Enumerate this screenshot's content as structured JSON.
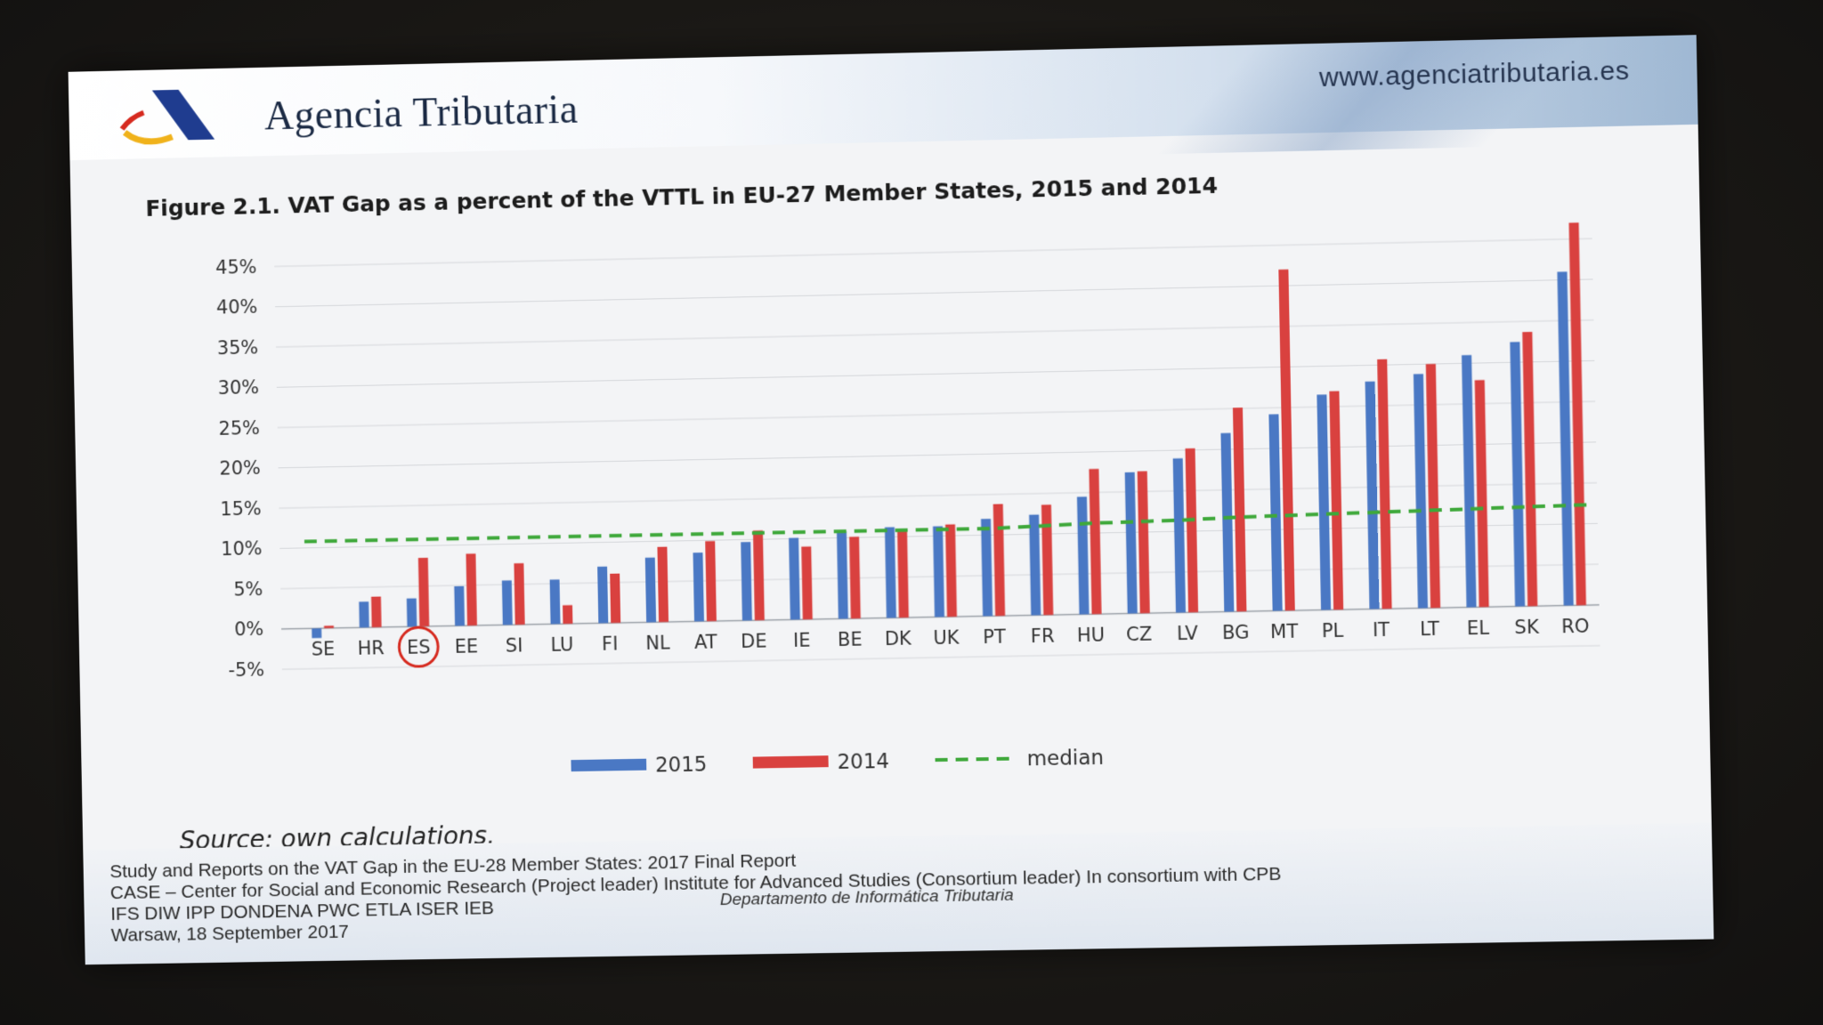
{
  "header": {
    "org_name": "Agencia Tributaria",
    "website": "www.agenciatributaria.es"
  },
  "figure_title": "Figure 2.1. VAT Gap as a percent of the VTTL in EU-27 Member States, 2015 and 2014",
  "source_note": "Source: own calculations.",
  "footer": {
    "line1": "Study and Reports on the VAT Gap in the EU-28 Member States: 2017 Final Report",
    "line2": "CASE – Center for Social and Economic Research (Project leader) Institute for Advanced Studies (Consortium leader) In consortium with CPB",
    "line3": "IFS DIW IPP DONDENA PWC ETLA ISER IEB",
    "line4": "Warsaw, 18 September 2017",
    "department": "Departamento de Informática Tributaria"
  },
  "colors": {
    "series_2015": "#4a78c4",
    "series_2014": "#d9413f",
    "median": "#3ea83a",
    "highlight_circle": "#d62a1f"
  },
  "chart_data": {
    "type": "bar",
    "title": "Figure 2.1. VAT Gap as a percent of the VTTL in EU-27 Member States, 2015 and 2014",
    "xlabel": "",
    "ylabel": "",
    "ylim": [
      -5,
      45
    ],
    "y_ticks": [
      "-5%",
      "0%",
      "5%",
      "10%",
      "15%",
      "20%",
      "25%",
      "30%",
      "35%",
      "40%",
      "45%"
    ],
    "grid": true,
    "legend_position": "bottom",
    "highlighted_category": "ES",
    "categories": [
      "SE",
      "HR",
      "ES",
      "EE",
      "SI",
      "LU",
      "FI",
      "NL",
      "AT",
      "DE",
      "IE",
      "BE",
      "DK",
      "UK",
      "PT",
      "FR",
      "HU",
      "CZ",
      "LV",
      "BG",
      "MT",
      "PL",
      "IT",
      "LT",
      "EL",
      "SK",
      "RO"
    ],
    "series": [
      {
        "name": "2015",
        "values": [
          -1.2,
          3.2,
          3.5,
          4.9,
          5.5,
          5.5,
          7.0,
          8.0,
          8.5,
          9.7,
          10.1,
          10.8,
          11.2,
          11.2,
          12.0,
          12.4,
          14.5,
          17.4,
          19.0,
          22.0,
          24.2,
          26.5,
          28.0,
          28.8,
          31.0,
          32.5,
          41.0
        ]
      },
      {
        "name": "2014",
        "values": [
          0.3,
          3.8,
          8.5,
          8.9,
          7.6,
          2.3,
          6.1,
          9.3,
          9.9,
          11.1,
          9.0,
          10.1,
          10.9,
          11.4,
          13.8,
          13.6,
          17.9,
          17.5,
          20.2,
          25.1,
          42.0,
          26.9,
          30.7,
          30.0,
          27.9,
          33.7,
          47.0
        ]
      },
      {
        "name": "median",
        "type": "line",
        "values": [
          10.8,
          10.8,
          10.8,
          10.8,
          10.8,
          10.8,
          10.8,
          10.8,
          10.8,
          10.8,
          10.8,
          10.8,
          10.8,
          10.8,
          10.8,
          11.0,
          11.2,
          11.3,
          11.4,
          11.6,
          11.7,
          11.8,
          11.9,
          12.0,
          12.1,
          12.2,
          12.3
        ]
      }
    ],
    "legend": [
      "2015",
      "2014",
      "median"
    ]
  }
}
